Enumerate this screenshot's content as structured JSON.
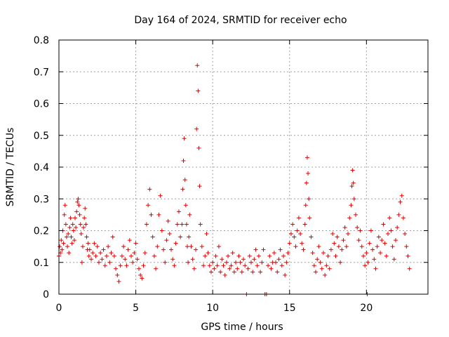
{
  "chart_data": {
    "type": "scatter",
    "title": "Day 164 of 2024, SRMTID for receiver echo",
    "xlabel": "GPS time / hours",
    "ylabel": "SRMTID / TECUs",
    "xlim": [
      0,
      24
    ],
    "ylim": [
      0,
      0.8
    ],
    "xticks": [
      0,
      5,
      10,
      15,
      20
    ],
    "yticks": [
      0,
      0.1,
      0.2,
      0.3,
      0.4,
      0.5,
      0.6,
      0.7,
      0.8
    ],
    "xtick_labels": [
      "0",
      "5",
      "10",
      "15",
      "20"
    ],
    "ytick_labels": [
      "0",
      "0.1",
      "0.2",
      "0.3",
      "0.4",
      "0.5",
      "0.6",
      "0.7",
      "0.8"
    ],
    "grid": true,
    "marker": "+",
    "color": "#e00000",
    "series": [
      {
        "name": "echo",
        "points": [
          [
            0.0,
            0.12
          ],
          [
            0.05,
            0.15
          ],
          [
            0.1,
            0.13
          ],
          [
            0.15,
            0.17
          ],
          [
            0.2,
            0.14
          ],
          [
            0.25,
            0.2
          ],
          [
            0.3,
            0.16
          ],
          [
            0.35,
            0.25
          ],
          [
            0.4,
            0.28
          ],
          [
            0.45,
            0.22
          ],
          [
            0.5,
            0.18
          ],
          [
            0.55,
            0.15
          ],
          [
            0.6,
            0.19
          ],
          [
            0.65,
            0.13
          ],
          [
            0.7,
            0.21
          ],
          [
            0.75,
            0.24
          ],
          [
            0.8,
            0.18
          ],
          [
            0.85,
            0.16
          ],
          [
            0.9,
            0.22
          ],
          [
            0.95,
            0.2
          ],
          [
            1.0,
            0.17
          ],
          [
            1.05,
            0.24
          ],
          [
            1.1,
            0.21
          ],
          [
            1.15,
            0.26
          ],
          [
            1.2,
            0.29
          ],
          [
            1.25,
            0.3
          ],
          [
            1.3,
            0.28
          ],
          [
            1.35,
            0.25
          ],
          [
            1.4,
            0.22
          ],
          [
            1.45,
            0.19
          ],
          [
            1.5,
            0.1
          ],
          [
            1.55,
            0.15
          ],
          [
            1.6,
            0.21
          ],
          [
            1.65,
            0.24
          ],
          [
            1.7,
            0.27
          ],
          [
            1.75,
            0.22
          ],
          [
            1.8,
            0.18
          ],
          [
            1.85,
            0.14
          ],
          [
            1.9,
            0.16
          ],
          [
            1.95,
            0.12
          ],
          [
            2.0,
            0.14
          ],
          [
            2.1,
            0.11
          ],
          [
            2.2,
            0.13
          ],
          [
            2.3,
            0.16
          ],
          [
            2.4,
            0.12
          ],
          [
            2.5,
            0.15
          ],
          [
            2.6,
            0.1
          ],
          [
            2.7,
            0.13
          ],
          [
            2.8,
            0.11
          ],
          [
            2.9,
            0.14
          ],
          [
            3.0,
            0.09
          ],
          [
            3.1,
            0.12
          ],
          [
            3.2,
            0.15
          ],
          [
            3.3,
            0.1
          ],
          [
            3.4,
            0.13
          ],
          [
            3.5,
            0.18
          ],
          [
            3.6,
            0.12
          ],
          [
            3.7,
            0.08
          ],
          [
            3.8,
            0.06
          ],
          [
            3.9,
            0.04
          ],
          [
            4.0,
            0.09
          ],
          [
            4.1,
            0.12
          ],
          [
            4.2,
            0.15
          ],
          [
            4.3,
            0.11
          ],
          [
            4.4,
            0.09
          ],
          [
            4.5,
            0.14
          ],
          [
            4.6,
            0.17
          ],
          [
            4.7,
            0.12
          ],
          [
            4.8,
            0.1
          ],
          [
            4.9,
            0.13
          ],
          [
            5.0,
            0.16
          ],
          [
            5.1,
            0.11
          ],
          [
            5.2,
            0.08
          ],
          [
            5.3,
            0.06
          ],
          [
            5.4,
            0.05
          ],
          [
            5.5,
            0.09
          ],
          [
            5.6,
            0.13
          ],
          [
            5.7,
            0.22
          ],
          [
            5.8,
            0.28
          ],
          [
            5.9,
            0.33
          ],
          [
            6.0,
            0.25
          ],
          [
            6.1,
            0.18
          ],
          [
            6.2,
            0.12
          ],
          [
            6.3,
            0.08
          ],
          [
            6.4,
            0.15
          ],
          [
            6.5,
            0.25
          ],
          [
            6.6,
            0.31
          ],
          [
            6.7,
            0.2
          ],
          [
            6.8,
            0.14
          ],
          [
            6.9,
            0.1
          ],
          [
            7.0,
            0.17
          ],
          [
            7.1,
            0.23
          ],
          [
            7.2,
            0.19
          ],
          [
            7.3,
            0.14
          ],
          [
            7.4,
            0.11
          ],
          [
            7.5,
            0.09
          ],
          [
            7.6,
            0.16
          ],
          [
            7.7,
            0.22
          ],
          [
            7.8,
            0.26
          ],
          [
            7.9,
            0.18
          ],
          [
            8.0,
            0.22
          ],
          [
            8.05,
            0.33
          ],
          [
            8.1,
            0.42
          ],
          [
            8.15,
            0.49
          ],
          [
            8.2,
            0.36
          ],
          [
            8.25,
            0.28
          ],
          [
            8.3,
            0.22
          ],
          [
            8.35,
            0.15
          ],
          [
            8.4,
            0.1
          ],
          [
            8.45,
            0.18
          ],
          [
            8.5,
            0.25
          ],
          [
            8.6,
            0.15
          ],
          [
            8.7,
            0.11
          ],
          [
            8.8,
            0.08
          ],
          [
            8.9,
            0.14
          ],
          [
            8.95,
            0.52
          ],
          [
            9.0,
            0.72
          ],
          [
            9.05,
            0.64
          ],
          [
            9.1,
            0.46
          ],
          [
            9.15,
            0.34
          ],
          [
            9.2,
            0.22
          ],
          [
            9.3,
            0.15
          ],
          [
            9.4,
            0.09
          ],
          [
            9.5,
            0.12
          ],
          [
            9.6,
            0.19
          ],
          [
            9.7,
            0.13
          ],
          [
            9.8,
            0.09
          ],
          [
            9.9,
            0.07
          ],
          [
            10.0,
            0.1
          ],
          [
            10.1,
            0.08
          ],
          [
            10.2,
            0.12
          ],
          [
            10.3,
            0.09
          ],
          [
            10.4,
            0.15
          ],
          [
            10.5,
            0.07
          ],
          [
            10.6,
            0.11
          ],
          [
            10.7,
            0.09
          ],
          [
            10.8,
            0.06
          ],
          [
            10.9,
            0.1
          ],
          [
            11.0,
            0.12
          ],
          [
            11.1,
            0.08
          ],
          [
            11.2,
            0.09
          ],
          [
            11.3,
            0.13
          ],
          [
            11.4,
            0.07
          ],
          [
            11.5,
            0.1
          ],
          [
            11.6,
            0.08
          ],
          [
            11.7,
            0.12
          ],
          [
            11.8,
            0.1
          ],
          [
            11.9,
            0.07
          ],
          [
            12.0,
            0.11
          ],
          [
            12.1,
            0.09
          ],
          [
            12.2,
            0.0
          ],
          [
            12.3,
            0.08
          ],
          [
            12.4,
            0.12
          ],
          [
            12.5,
            0.1
          ],
          [
            12.6,
            0.07
          ],
          [
            12.7,
            0.11
          ],
          [
            12.8,
            0.14
          ],
          [
            12.9,
            0.09
          ],
          [
            13.0,
            0.12
          ],
          [
            13.1,
            0.07
          ],
          [
            13.2,
            0.1
          ],
          [
            13.3,
            0.14
          ],
          [
            13.4,
            0.0
          ],
          [
            13.5,
            0.0
          ],
          [
            13.6,
            0.09
          ],
          [
            13.7,
            0.12
          ],
          [
            13.8,
            0.08
          ],
          [
            13.9,
            0.1
          ],
          [
            14.0,
            0.13
          ],
          [
            14.1,
            0.1
          ],
          [
            14.2,
            0.07
          ],
          [
            14.3,
            0.11
          ],
          [
            14.4,
            0.14
          ],
          [
            14.5,
            0.09
          ],
          [
            14.6,
            0.12
          ],
          [
            14.7,
            0.06
          ],
          [
            14.8,
            0.1
          ],
          [
            14.9,
            0.13
          ],
          [
            15.0,
            0.16
          ],
          [
            15.1,
            0.19
          ],
          [
            15.2,
            0.22
          ],
          [
            15.3,
            0.18
          ],
          [
            15.4,
            0.15
          ],
          [
            15.5,
            0.2
          ],
          [
            15.6,
            0.24
          ],
          [
            15.7,
            0.19
          ],
          [
            15.8,
            0.16
          ],
          [
            15.9,
            0.14
          ],
          [
            16.0,
            0.22
          ],
          [
            16.05,
            0.28
          ],
          [
            16.1,
            0.35
          ],
          [
            16.15,
            0.43
          ],
          [
            16.2,
            0.38
          ],
          [
            16.25,
            0.3
          ],
          [
            16.3,
            0.24
          ],
          [
            16.4,
            0.18
          ],
          [
            16.5,
            0.13
          ],
          [
            16.6,
            0.09
          ],
          [
            16.7,
            0.07
          ],
          [
            16.8,
            0.11
          ],
          [
            16.9,
            0.15
          ],
          [
            17.0,
            0.1
          ],
          [
            17.1,
            0.08
          ],
          [
            17.2,
            0.13
          ],
          [
            17.3,
            0.06
          ],
          [
            17.4,
            0.09
          ],
          [
            17.5,
            0.12
          ],
          [
            17.6,
            0.08
          ],
          [
            17.7,
            0.14
          ],
          [
            17.8,
            0.19
          ],
          [
            17.9,
            0.16
          ],
          [
            18.0,
            0.12
          ],
          [
            18.1,
            0.18
          ],
          [
            18.2,
            0.15
          ],
          [
            18.3,
            0.1
          ],
          [
            18.4,
            0.14
          ],
          [
            18.5,
            0.17
          ],
          [
            18.6,
            0.21
          ],
          [
            18.7,
            0.15
          ],
          [
            18.8,
            0.19
          ],
          [
            18.9,
            0.24
          ],
          [
            19.0,
            0.28
          ],
          [
            19.05,
            0.34
          ],
          [
            19.1,
            0.39
          ],
          [
            19.15,
            0.35
          ],
          [
            19.2,
            0.3
          ],
          [
            19.3,
            0.25
          ],
          [
            19.4,
            0.21
          ],
          [
            19.5,
            0.17
          ],
          [
            19.6,
            0.2
          ],
          [
            19.7,
            0.15
          ],
          [
            19.8,
            0.12
          ],
          [
            19.9,
            0.09
          ],
          [
            20.0,
            0.13
          ],
          [
            20.05,
            0.0
          ],
          [
            20.1,
            0.1
          ],
          [
            20.2,
            0.16
          ],
          [
            20.3,
            0.2
          ],
          [
            20.4,
            0.14
          ],
          [
            20.5,
            0.11
          ],
          [
            20.6,
            0.08
          ],
          [
            20.7,
            0.15
          ],
          [
            20.8,
            0.18
          ],
          [
            20.9,
            0.13
          ],
          [
            21.0,
            0.17
          ],
          [
            21.1,
            0.22
          ],
          [
            21.2,
            0.16
          ],
          [
            21.3,
            0.12
          ],
          [
            21.4,
            0.19
          ],
          [
            21.5,
            0.24
          ],
          [
            21.6,
            0.2
          ],
          [
            21.7,
            0.15
          ],
          [
            21.8,
            0.11
          ],
          [
            21.9,
            0.17
          ],
          [
            22.0,
            0.21
          ],
          [
            22.1,
            0.25
          ],
          [
            22.2,
            0.29
          ],
          [
            22.3,
            0.31
          ],
          [
            22.4,
            0.24
          ],
          [
            22.5,
            0.19
          ],
          [
            22.6,
            0.15
          ],
          [
            22.7,
            0.12
          ],
          [
            22.8,
            0.08
          ]
        ]
      }
    ]
  }
}
